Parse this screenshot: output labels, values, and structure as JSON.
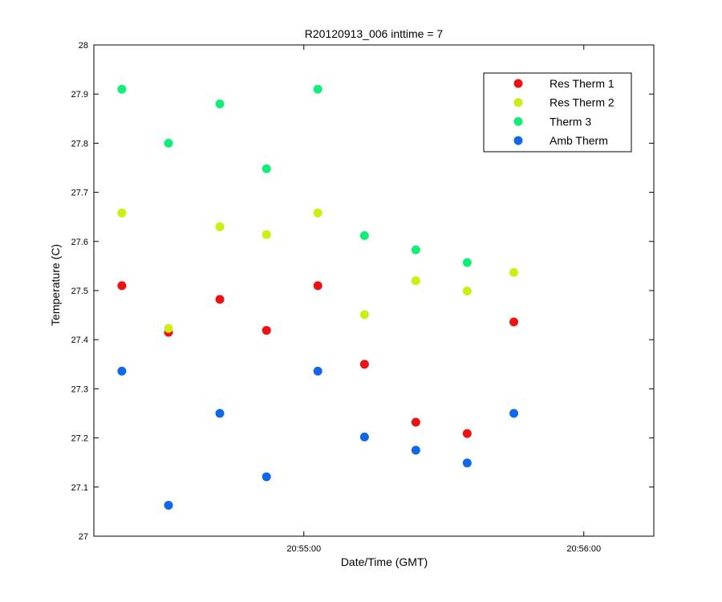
{
  "chart_data": {
    "type": "scatter",
    "title": "R20120913_006 inttime = 7",
    "xlabel": "Date/Time (GMT)",
    "ylabel": "Temperature (C)",
    "x_unit": "HH:MM:SS",
    "xlim": [
      "20:54:15",
      "20:56:15"
    ],
    "ylim": [
      27,
      28
    ],
    "x_ticks": [
      "20:55:00",
      "20:56:00"
    ],
    "y_ticks": [
      "27",
      "27.1",
      "27.2",
      "27.3",
      "27.4",
      "27.5",
      "27.6",
      "27.7",
      "27.8",
      "27.9",
      "28"
    ],
    "grid": false,
    "legend_position": "top-right",
    "series": [
      {
        "name": "Res Therm 1",
        "color": "#ee1111",
        "x": [
          "20:54:21",
          "20:54:31",
          "20:54:42",
          "20:54:52",
          "20:55:03",
          "20:55:13",
          "20:55:24",
          "20:55:35",
          "20:55:45"
        ],
        "y": [
          27.51,
          27.415,
          27.482,
          27.419,
          27.51,
          27.35,
          27.232,
          27.209,
          27.436
        ]
      },
      {
        "name": "Res Therm 2",
        "color": "#ccee11",
        "x": [
          "20:54:21",
          "20:54:31",
          "20:54:42",
          "20:54:52",
          "20:55:03",
          "20:55:13",
          "20:55:24",
          "20:55:35",
          "20:55:45"
        ],
        "y": [
          27.658,
          27.423,
          27.63,
          27.614,
          27.658,
          27.451,
          27.52,
          27.499,
          27.537
        ]
      },
      {
        "name": "Therm 3",
        "color": "#11ee77",
        "x": [
          "20:54:21",
          "20:54:31",
          "20:54:42",
          "20:54:52",
          "20:55:03",
          "20:55:13",
          "20:55:24",
          "20:55:35"
        ],
        "y": [
          27.91,
          27.8,
          27.88,
          27.748,
          27.91,
          27.612,
          27.583,
          27.557
        ]
      },
      {
        "name": "Amb Therm",
        "color": "#1166ee",
        "x": [
          "20:54:21",
          "20:54:31",
          "20:54:42",
          "20:54:52",
          "20:55:03",
          "20:55:13",
          "20:55:24",
          "20:55:35",
          "20:55:45"
        ],
        "y": [
          27.336,
          27.063,
          27.25,
          27.121,
          27.336,
          27.202,
          27.175,
          27.149,
          27.25
        ]
      }
    ]
  }
}
